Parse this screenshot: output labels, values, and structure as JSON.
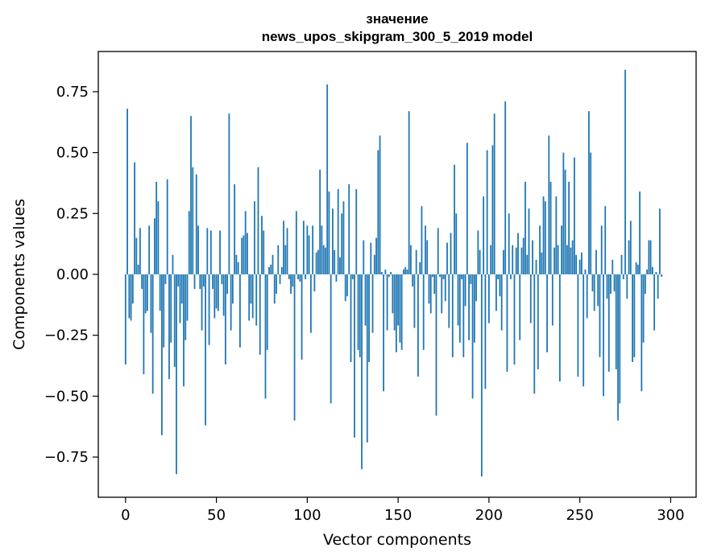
{
  "chart_data": {
    "type": "bar",
    "title_line1": "значение",
    "title_line2": "news_upos_skipgram_300_5_2019 model",
    "xlabel": "Vector components",
    "ylabel": "Components values",
    "xlim": [
      -15,
      314
    ],
    "ylim": [
      -0.915,
      0.915
    ],
    "xticks": [
      0,
      50,
      100,
      150,
      200,
      250,
      300
    ],
    "xtick_labels": [
      "0",
      "50",
      "100",
      "150",
      "200",
      "250",
      "300"
    ],
    "yticks": [
      0.75,
      0.5,
      0.25,
      0.0,
      -0.25,
      -0.5,
      -0.75
    ],
    "ytick_labels": [
      "0.75",
      "0.50",
      "0.25",
      "0.00",
      "−0.25",
      "−0.50",
      "−0.75"
    ],
    "values": [
      -0.37,
      0.68,
      -0.18,
      -0.19,
      -0.12,
      0.46,
      0.15,
      0.04,
      0.19,
      -0.06,
      -0.41,
      -0.16,
      -0.15,
      0.2,
      -0.24,
      -0.49,
      0.23,
      0.38,
      0.3,
      -0.15,
      -0.66,
      -0.3,
      -0.04,
      0.39,
      -0.43,
      -0.28,
      0.08,
      -0.38,
      -0.82,
      -0.05,
      -0.2,
      -0.12,
      -0.46,
      -0.27,
      -0.19,
      0.26,
      0.65,
      0.44,
      -0.06,
      0.41,
      0.2,
      -0.06,
      -0.23,
      -0.05,
      -0.62,
      0.19,
      -0.29,
      0.18,
      -0.06,
      -0.18,
      -0.14,
      -0.15,
      0.18,
      -0.04,
      -0.17,
      -0.37,
      -0.08,
      0.66,
      -0.23,
      -0.12,
      0.37,
      0.08,
      0.05,
      -0.3,
      0.15,
      0.16,
      0.26,
      0.17,
      -0.19,
      -0.12,
      -0.18,
      0.3,
      -0.21,
      0.44,
      -0.33,
      0.24,
      0.18,
      -0.51,
      -0.31,
      0.03,
      0.04,
      0.08,
      -0.12,
      -0.08,
      0.12,
      -0.04,
      0.03,
      0.22,
      0.12,
      0.19,
      -0.02,
      -0.08,
      -0.05,
      -0.6,
      0.26,
      -0.02,
      -0.03,
      -0.35,
      0.22,
      -0.02,
      0.2,
      0.16,
      -0.24,
      0.2,
      -0.07,
      0.09,
      0.1,
      0.43,
      0.2,
      0.12,
      0.11,
      0.78,
      0.34,
      -0.53,
      0.27,
      0.1,
      -0.03,
      0.35,
      0.07,
      0.25,
      0.3,
      -0.11,
      -0.09,
      0.37,
      -0.36,
      -0.02,
      -0.67,
      0.35,
      -0.31,
      -0.34,
      -0.8,
      0.14,
      -0.21,
      -0.69,
      -0.36,
      0.13,
      -0.24,
      0.08,
      0.15,
      0.51,
      0.57,
      0.01,
      -0.48,
      0.02,
      -0.23,
      -0.01,
      0.01,
      -0.16,
      -0.23,
      -0.32,
      -0.21,
      -0.28,
      -0.31,
      0.02,
      0.03,
      0.02,
      0.67,
      0.12,
      -0.05,
      -0.22,
      0.1,
      -0.42,
      0.05,
      0.28,
      -0.31,
      0.2,
      0.14,
      -0.12,
      -0.16,
      -0.01,
      -0.08,
      -0.58,
      0.19,
      -0.01,
      -0.16,
      -0.02,
      -0.11,
      0.13,
      -0.22,
      0.17,
      -0.34,
      0.45,
      0.25,
      -0.21,
      -0.28,
      -0.02,
      -0.34,
      -0.13,
      0.54,
      -0.27,
      -0.04,
      -0.51,
      -0.28,
      -0.11,
      0.18,
      0.1,
      -0.83,
      0.32,
      -0.47,
      0.51,
      -0.2,
      0.12,
      0.53,
      0.66,
      -0.15,
      -0.02,
      -0.09,
      -0.23,
      0.1,
      0.71,
      -0.4,
      0.25,
      -0.02,
      0.12,
      -0.37,
      0.11,
      0.17,
      -0.27,
      0.11,
      0.15,
      0.38,
      0.08,
      0.27,
      -0.2,
      0.14,
      -0.49,
      0.06,
      -0.39,
      0.2,
      0.09,
      0.32,
      0.3,
      -0.32,
      0.57,
      0.38,
      -0.21,
      0.11,
      0.32,
      0.12,
      -0.44,
      0.2,
      0.5,
      0.43,
      0.12,
      0.38,
      0.11,
      0.14,
      0.48,
      0.08,
      -0.42,
      0.06,
      0.09,
      -0.46,
      0.02,
      -0.18,
      0.67,
      0.5,
      -0.07,
      -0.15,
      0.1,
      -0.13,
      -0.34,
      0.2,
      -0.5,
      0.28,
      -0.1,
      -0.4,
      -0.08,
      0.06,
      -0.07,
      -0.39,
      -0.6,
      -0.53,
      0.08,
      -0.02,
      0.84,
      -0.1,
      0.14,
      0.22,
      -0.36,
      -0.34,
      0.05,
      0.04,
      0.34,
      -0.48,
      -0.28,
      -0.08,
      0.02,
      0.14,
      0.14,
      0.03,
      -0.23,
      0.01,
      -0.1,
      0.27,
      -0.01
    ]
  }
}
